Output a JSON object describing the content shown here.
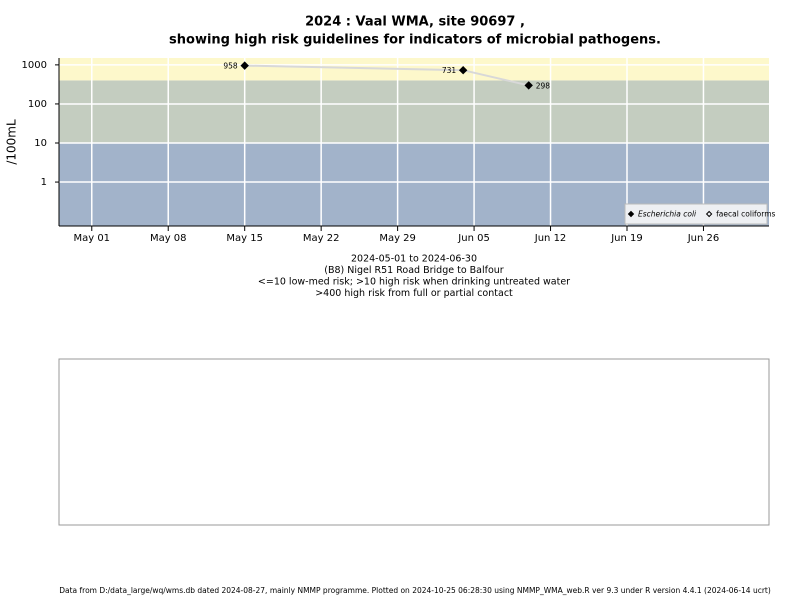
{
  "chart_data": {
    "type": "scatter",
    "title": "2024 : Vaal WMA, site 90697 ,",
    "subtitle": "showing high risk guidelines for indicators of microbial pathogens.",
    "y_label": "/100mL",
    "notes": [
      "2024-05-01 to 2024-06-30",
      "(B8) Nigel R51 Road Bridge to Balfour",
      "<=10 low-med risk; >10 high risk when drinking untreated water",
      ">400 high risk from full or partial contact"
    ],
    "footer": "Data from D:/data_large/wq/wms.db dated 2024-08-27, mainly NMMP programme. Plotted on 2024-10-25 06:28:30 using NMMP_WMA_web.R ver 9.3 under R version 4.4.1 (2024-06-14 ucrt)",
    "log_y": true,
    "grid": true,
    "legend_position": "bottom-right",
    "xlim": [
      "2024-04-28",
      "2024-07-02"
    ],
    "xticks": [
      {
        "value": "2024-05-01",
        "label": "May 01"
      },
      {
        "value": "2024-05-08",
        "label": "May 08"
      },
      {
        "value": "2024-05-15",
        "label": "May 15"
      },
      {
        "value": "2024-05-22",
        "label": "May 22"
      },
      {
        "value": "2024-05-29",
        "label": "May 29"
      },
      {
        "value": "2024-06-05",
        "label": "Jun 05"
      },
      {
        "value": "2024-06-12",
        "label": "Jun 12"
      },
      {
        "value": "2024-06-19",
        "label": "Jun 19"
      },
      {
        "value": "2024-06-26",
        "label": "Jun 26"
      }
    ],
    "ylim": [
      0.075,
      1500
    ],
    "yticks": [
      1,
      10,
      100,
      1000
    ],
    "thresholds": [
      10,
      400
    ],
    "band_colors": [
      "#a2b3ca",
      "#c4cdc0",
      "#fdf8cb"
    ],
    "line_color": "#d8d8d8",
    "series": [
      {
        "name": "Escherichia coli",
        "color": "#000000",
        "marker": "filled",
        "x": [
          "2024-05-15",
          "2024-06-04",
          "2024-06-10"
        ],
        "values": [
          958,
          731,
          298
        ]
      },
      {
        "name": "faecal coliforms",
        "color": "#000000",
        "marker": "open",
        "x": [],
        "values": []
      }
    ]
  }
}
